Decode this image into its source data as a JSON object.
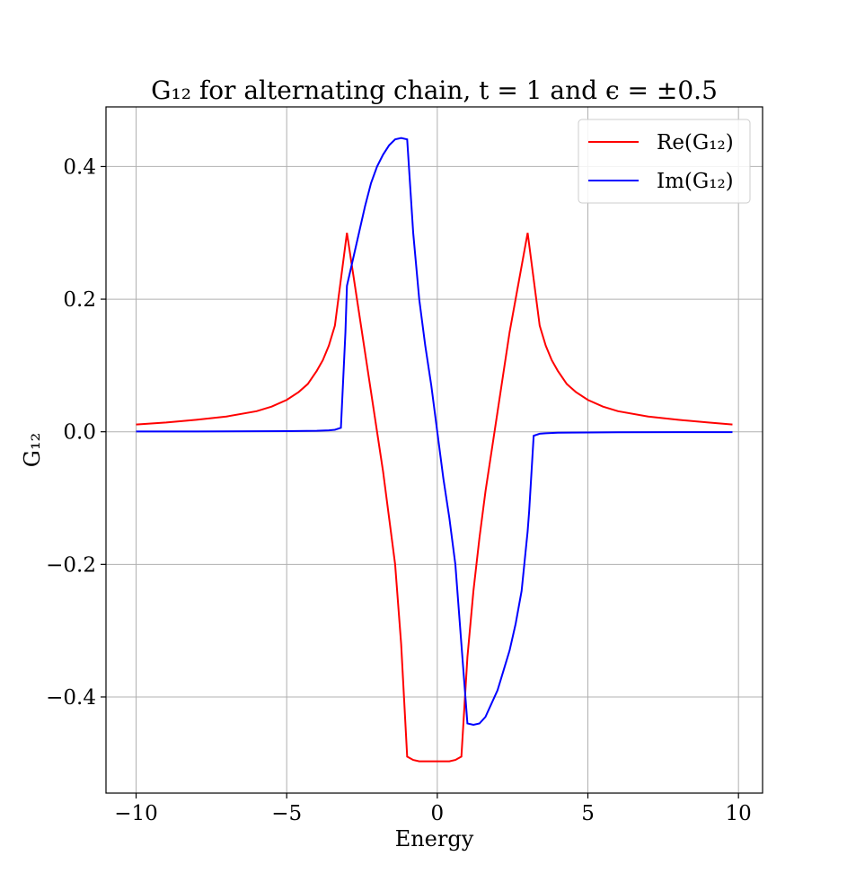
{
  "chart_data": {
    "type": "line",
    "title": "G₁₂ for alternating chain, t = 1 and ϵ = ±0.5",
    "xlabel": "Energy",
    "ylabel": "G₁₂",
    "xlim": [
      -11,
      10.8
    ],
    "ylim": [
      -0.545,
      0.49
    ],
    "xticks": [
      -10,
      -5,
      0,
      5,
      10
    ],
    "xtick_labels": [
      "−10",
      "−5",
      "0",
      "5",
      "10"
    ],
    "yticks": [
      -0.4,
      -0.2,
      0.0,
      0.2,
      0.4
    ],
    "ytick_labels": [
      "−0.4",
      "−0.2",
      "0.0",
      "0.2",
      "0.4"
    ],
    "grid": true,
    "legend_position": "top-right",
    "series": [
      {
        "name": "Re(G₁₂)",
        "color": "#ff0000",
        "x": [
          -10,
          -9,
          -8,
          -7,
          -6,
          -5.5,
          -5,
          -4.6,
          -4.3,
          -4,
          -3.8,
          -3.6,
          -3.4,
          -3.2,
          -3.0,
          -2.8,
          -2.6,
          -2.4,
          -2.2,
          -2.0,
          -1.8,
          -1.6,
          -1.4,
          -1.2,
          -1.0,
          -0.8,
          -0.6,
          -0.4,
          -0.2,
          0,
          0.2,
          0.4,
          0.6,
          0.8,
          1.0,
          1.2,
          1.4,
          1.6,
          1.8,
          2.0,
          2.2,
          2.4,
          2.6,
          2.8,
          3.0,
          3.2,
          3.4,
          3.6,
          3.8,
          4.0,
          4.3,
          4.6,
          5.0,
          5.5,
          6,
          7,
          8,
          9,
          9.8
        ],
        "y": [
          0.011,
          0.014,
          0.018,
          0.023,
          0.031,
          0.038,
          0.048,
          0.06,
          0.072,
          0.092,
          0.108,
          0.13,
          0.16,
          0.23,
          0.3,
          0.24,
          0.18,
          0.12,
          0.06,
          0.0,
          -0.06,
          -0.13,
          -0.2,
          -0.32,
          -0.49,
          -0.495,
          -0.497,
          -0.497,
          -0.497,
          -0.497,
          -0.497,
          -0.497,
          -0.495,
          -0.49,
          -0.34,
          -0.24,
          -0.16,
          -0.09,
          -0.03,
          0.03,
          0.09,
          0.15,
          0.2,
          0.25,
          0.3,
          0.23,
          0.16,
          0.13,
          0.108,
          0.092,
          0.072,
          0.06,
          0.048,
          0.038,
          0.031,
          0.023,
          0.018,
          0.014,
          0.011
        ]
      },
      {
        "name": "Im(G₁₂)",
        "color": "#0000ff",
        "x": [
          -10,
          -8,
          -6,
          -5,
          -4,
          -3.6,
          -3.4,
          -3.2,
          -3.05,
          -3.0,
          -2.8,
          -2.6,
          -2.4,
          -2.2,
          -2.0,
          -1.8,
          -1.6,
          -1.4,
          -1.2,
          -1.0,
          -0.8,
          -0.6,
          -0.4,
          -0.2,
          0,
          0.2,
          0.4,
          0.6,
          0.8,
          1.0,
          1.2,
          1.4,
          1.6,
          1.8,
          2.0,
          2.2,
          2.4,
          2.6,
          2.8,
          3.0,
          3.05,
          3.2,
          3.4,
          3.6,
          4,
          5,
          6,
          8,
          9.8
        ],
        "y": [
          0.0005,
          0.0005,
          0.0008,
          0.001,
          0.0015,
          0.0022,
          0.003,
          0.006,
          0.15,
          0.22,
          0.26,
          0.3,
          0.34,
          0.375,
          0.4,
          0.418,
          0.432,
          0.441,
          0.443,
          0.441,
          0.3,
          0.2,
          0.13,
          0.07,
          0.0,
          -0.07,
          -0.13,
          -0.2,
          -0.32,
          -0.44,
          -0.442,
          -0.44,
          -0.43,
          -0.41,
          -0.39,
          -0.36,
          -0.33,
          -0.29,
          -0.24,
          -0.15,
          -0.12,
          -0.006,
          -0.003,
          -0.0022,
          -0.0015,
          -0.001,
          -0.0008,
          -0.0005,
          -0.0005
        ]
      }
    ]
  }
}
